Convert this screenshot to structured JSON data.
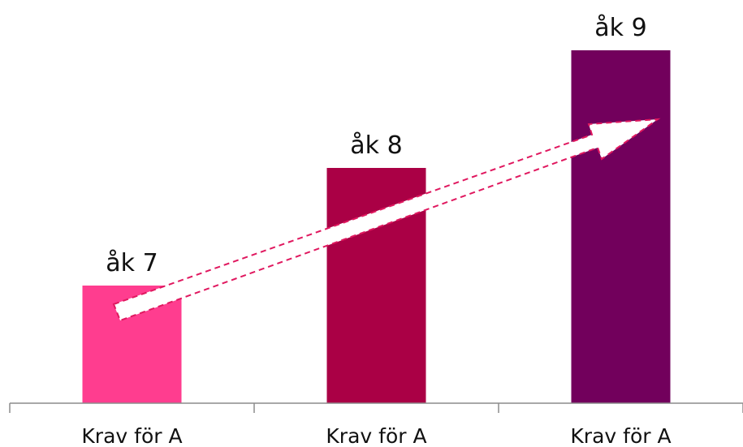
{
  "chart_data": {
    "type": "bar",
    "categories": [
      "Krav för A",
      "Krav för A",
      "Krav för A"
    ],
    "values": [
      1,
      2,
      3
    ],
    "data_labels": [
      "åk 7",
      "åk 8",
      "åk 9"
    ],
    "bar_colors": [
      "#ff3d8f",
      "#aa0045",
      "#72005c"
    ],
    "ylim": [
      0,
      3.2
    ],
    "grid": false,
    "legend": "none",
    "title": "",
    "xlabel": "",
    "ylabel": "",
    "annotation": {
      "shape": "arrow",
      "style": "dashed",
      "fill": "#ffffff",
      "stroke": "#e0185f",
      "direction": "rising"
    }
  }
}
